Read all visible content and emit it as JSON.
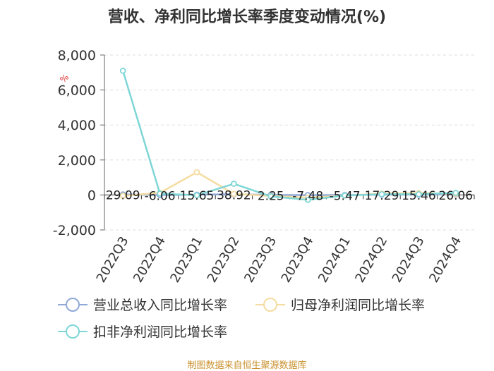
{
  "chart_data": {
    "type": "line",
    "title": "营收、净利同比增长率季度变动情况(%)",
    "ylabel": "%",
    "ylim": [
      -2000,
      8000
    ],
    "yticks": [
      -2000,
      0,
      2000,
      4000,
      6000,
      8000
    ],
    "ytick_labels": [
      "-2,000",
      "0",
      "2,000",
      "4,000",
      "6,000",
      "8,000"
    ],
    "categories": [
      "2022Q3",
      "2022Q4",
      "2023Q1",
      "2023Q2",
      "2023Q3",
      "2023Q4",
      "2024Q1",
      "2024Q2",
      "2024Q3",
      "2024Q4"
    ],
    "grid": true,
    "legend_position": "bottom-left",
    "series": [
      {
        "name": "营业总收入同比增长率",
        "color": "#8fa9d6",
        "values": [
          29.09,
          -6.06,
          15.65,
          38.92,
          2.25,
          -7.48,
          -5.47,
          17.29,
          15.46,
          26.06
        ],
        "labels": [
          "29.09",
          "-6.06",
          "15.65",
          "38.92",
          "2.25",
          "-7.48",
          "-5.47",
          "17.29",
          "15.46",
          "26.06"
        ]
      },
      {
        "name": "归母净利润同比增长率",
        "color": "#f5dca0",
        "values": [
          -50,
          120,
          1300,
          60,
          -60,
          -150,
          -40,
          80,
          110,
          60
        ]
      },
      {
        "name": "扣非净利润同比增长率",
        "color": "#7fd6d6",
        "values": [
          7100,
          80,
          -20,
          640,
          -80,
          -280,
          -30,
          40,
          40,
          120
        ]
      }
    ]
  },
  "footer": {
    "source": "制图数据来自恒生聚源数据库"
  }
}
